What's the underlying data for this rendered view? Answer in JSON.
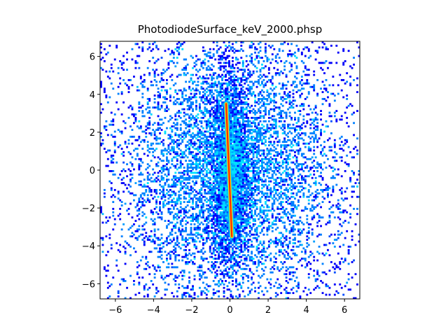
{
  "chart_data": {
    "type": "heatmap",
    "title": "PhotodiodeSurface_keV_2000.phsp",
    "xlabel": "",
    "ylabel": "",
    "xlim": [
      -6.8,
      6.8
    ],
    "ylim": [
      -6.8,
      6.8
    ],
    "x_ticks": [
      -6,
      -4,
      -2,
      0,
      2,
      4,
      6
    ],
    "y_ticks": [
      -6,
      -4,
      -2,
      0,
      2,
      4,
      6
    ],
    "x_tick_labels": [
      "−6",
      "−4",
      "−2",
      "0",
      "2",
      "4",
      "6"
    ],
    "y_tick_labels": [
      "−6",
      "−4",
      "−2",
      "0",
      "2",
      "4",
      "6"
    ],
    "grid": false,
    "colormap": "jet",
    "zero_bins_color": "#ffffff",
    "background_distribution": {
      "center": [
        0.0,
        0.0
      ],
      "sigma_x": 2.6,
      "sigma_y": 3.4
    },
    "halo_distribution": {
      "center": [
        0.0,
        0.0
      ],
      "sigma_x": 0.45,
      "sigma_y": 2.3
    },
    "line_feature": {
      "from": [
        -0.2,
        3.5
      ],
      "to": [
        0.1,
        -3.5
      ],
      "colors": [
        "#ff2a00",
        "#ffd700",
        "#00c8ff"
      ]
    }
  }
}
